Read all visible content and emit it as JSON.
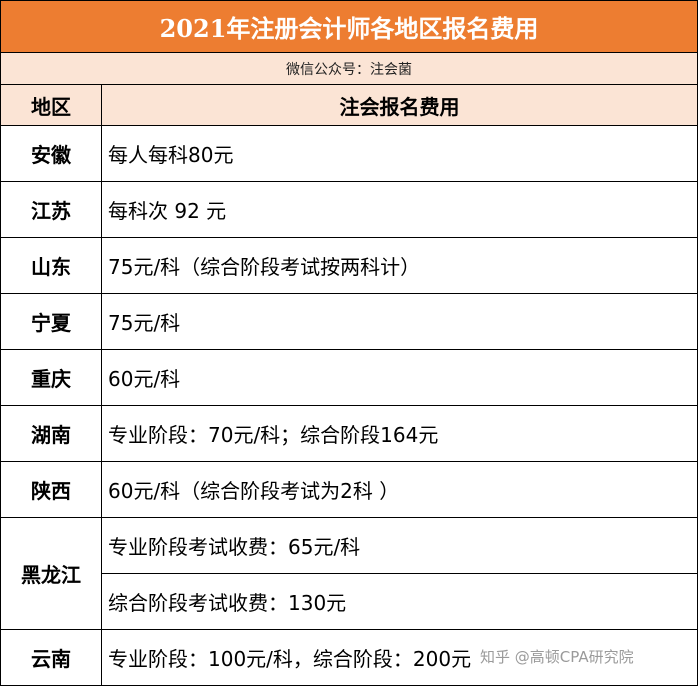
{
  "title": "2021年注册会计师各地区报名费用",
  "subtitle": "微信公众号：注会菌",
  "headers": {
    "region": "地区",
    "fee": "注会报名费用"
  },
  "rows": [
    {
      "region": "安徽",
      "fees": [
        "每人每科80元"
      ]
    },
    {
      "region": "江苏",
      "fees": [
        "每科次 92 元"
      ]
    },
    {
      "region": "山东",
      "fees": [
        "75元/科（综合阶段考试按两科计）"
      ]
    },
    {
      "region": "宁夏",
      "fees": [
        "75元/科"
      ]
    },
    {
      "region": "重庆",
      "fees": [
        "60元/科"
      ]
    },
    {
      "region": "湖南",
      "fees": [
        "专业阶段：70元/科；综合阶段164元"
      ]
    },
    {
      "region": "陕西",
      "fees": [
        "60元/科（综合阶段考试为2科 ）"
      ]
    },
    {
      "region": "黑龙江",
      "fees": [
        "专业阶段考试收费：65元/科",
        "综合阶段考试收费：130元"
      ]
    },
    {
      "region": "云南",
      "fees": [
        "专业阶段：100元/科，综合阶段：200元"
      ]
    }
  ],
  "watermark": "知乎 @高顿CPA研究院"
}
